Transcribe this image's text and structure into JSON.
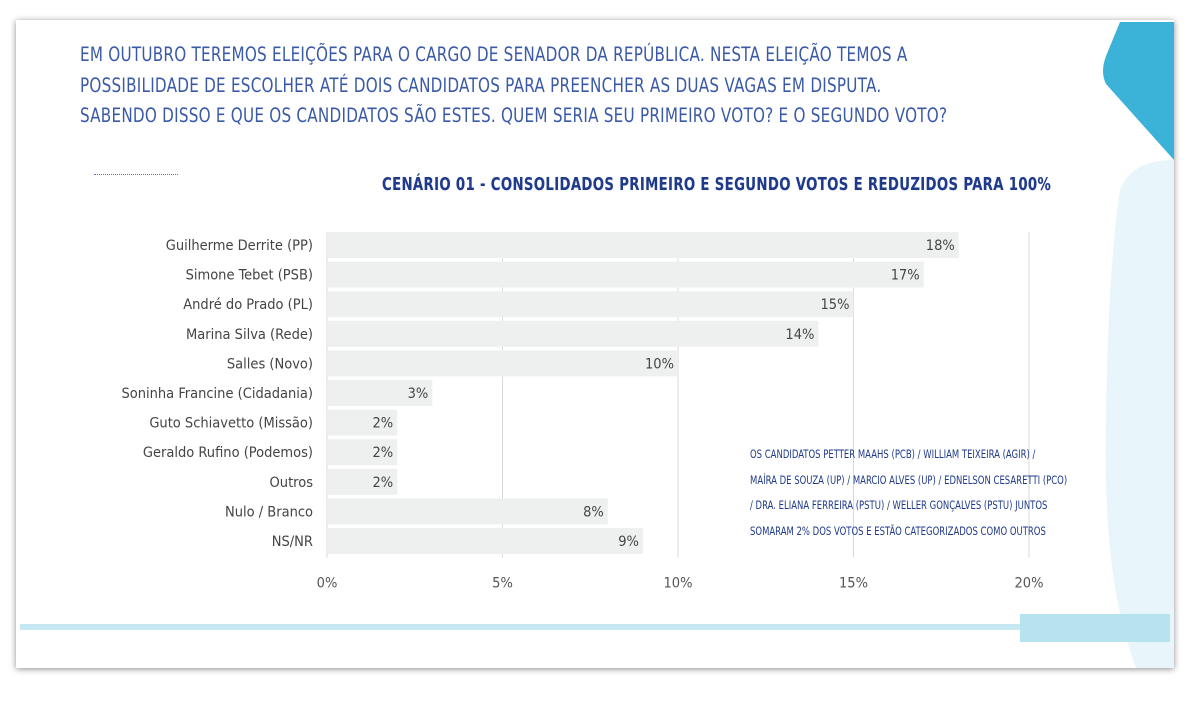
{
  "intro_lines": [
    "Em outubro teremos eleições para o cargo de senador da República. Nesta eleição temos a",
    "possibilidade de escolher até dois candidatos para preencher as duas vagas em disputa.",
    "Sabendo disso e que os candidatos são estes. Quem seria seu primeiro voto? E o segundo voto?"
  ],
  "note_lines": [
    "Os candidatos Petter Maahs (PCB) / William Teixeira (AGIR) /",
    "Maíra de Souza (UP) / Marcio Alves (UP) / Ednelson Cesaretti (PCO)",
    "/ Dra. Eliana Ferreira (PSTU) / Weller Gonçalves (PSTU) juntos",
    "somaram 2% dos votos e estão categorizados como outros"
  ],
  "colors": {
    "bar": "#eef0f0",
    "text_blue": "#3a5aa8",
    "title_blue": "#1f3a8a",
    "accent_cyan": "#3bb3d8",
    "accent_light": "#dff2f8"
  },
  "chart_data": {
    "type": "bar",
    "orientation": "horizontal",
    "title": "Cenário 01 - Consolidados primeiro e segundo votos e reduzidos para 100%",
    "categories": [
      "Guilherme Derrite (PP)",
      "Simone Tebet (PSB)",
      "André do Prado (PL)",
      "Marina Silva (Rede)",
      "Salles (Novo)",
      "Soninha Francine (Cidadania)",
      "Guto Schiavetto (Missão)",
      "Geraldo Rufino (Podemos)",
      "Outros",
      "Nulo / Branco",
      "NS/NR"
    ],
    "values": [
      18,
      17,
      15,
      14,
      10,
      3,
      2,
      2,
      2,
      8,
      9
    ],
    "value_labels": [
      "18%",
      "17%",
      "15%",
      "14%",
      "10%",
      "3%",
      "2%",
      "2%",
      "2%",
      "8%",
      "9%"
    ],
    "xlim": [
      0,
      20
    ],
    "xticks": [
      0,
      5,
      10,
      15,
      20
    ],
    "xtick_labels": [
      "0%",
      "5%",
      "10%",
      "15%",
      "20%"
    ],
    "grid": true,
    "xlabel": "",
    "ylabel": ""
  }
}
